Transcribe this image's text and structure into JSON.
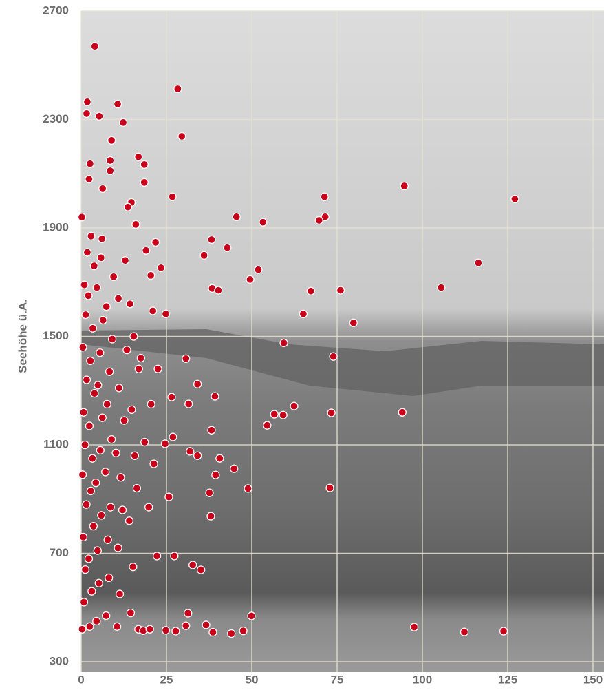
{
  "chart_data": {
    "type": "scatter",
    "ylabel": "Seehöhe ü.A.",
    "xlim": [
      0,
      150
    ],
    "ylim": [
      300,
      2700
    ],
    "xticks": [
      0,
      25,
      50,
      75,
      100,
      125,
      150
    ],
    "yticks": [
      300,
      700,
      1100,
      1500,
      1900,
      2300,
      2700
    ],
    "grid": true,
    "color": "#c8001a",
    "x": [
      4.0,
      28.3,
      29.5,
      1.8,
      10.7,
      5.3,
      1.6,
      12.3,
      8.9,
      16.8,
      18.5,
      8.5,
      2.6,
      8.5,
      18.5,
      6.3,
      26.7,
      94.7,
      71.3,
      127.1,
      14.7,
      13.7,
      45.5,
      71.5,
      69.7,
      53.3,
      16.0,
      38.2,
      42.8,
      21.8,
      19.0,
      36.0,
      116.4,
      23.4,
      51.9,
      20.4,
      49.5,
      38.4,
      40.2,
      67.3,
      76.0,
      105.5,
      21.0,
      24.8,
      65.1,
      79.8,
      59.4,
      73.9,
      30.7,
      34.1,
      39.2,
      26.5,
      31.5,
      62.4,
      56.6,
      59.2,
      73.3,
      94.1,
      54.5,
      38.2,
      26.9,
      24.6,
      31.9,
      34.1,
      40.6,
      44.8,
      39.4,
      37.6,
      48.9,
      72.9,
      25.7,
      38.0,
      32.7,
      35.1,
      31.3,
      49.9,
      36.6,
      97.6,
      112.3,
      123.8,
      44.0,
      47.5,
      38.6,
      27.7,
      30.7,
      24.8,
      22.2,
      27.3,
      0.3,
      0.8,
      1.2,
      0.6,
      1.5,
      0.4,
      1.1,
      0.7,
      1.6,
      0.5,
      1.3,
      0.9,
      0.2,
      1.8,
      2.5,
      3.1,
      2.2,
      3.6,
      2.8,
      3.3,
      2.4,
      3.9,
      2.7,
      3.4,
      2.1,
      3.8,
      2.9,
      2.3,
      4.5,
      5.2,
      4.8,
      5.9,
      4.3,
      5.6,
      6.2,
      4.9,
      5.5,
      6.4,
      4.6,
      5.8,
      6.1,
      7.3,
      8.1,
      7.8,
      8.6,
      7.1,
      8.9,
      7.6,
      8.3,
      9.1,
      7.4,
      9.5,
      10.5,
      11.3,
      10.8,
      12.1,
      11.6,
      10.2,
      12.6,
      11.1,
      13.4,
      10.9,
      12.9,
      14.5,
      15.2,
      14.1,
      16.3,
      15.7,
      14.8,
      16.9,
      15.4,
      14.3,
      17.5,
      18.6,
      19.8,
      20.5,
      21.3,
      16.8,
      18.2,
      20.1,
      22.5
    ],
    "values": [
      2570,
      2413,
      2238,
      2365,
      2357,
      2312,
      2322,
      2289,
      2223,
      2162,
      2134,
      2149,
      2137,
      2111,
      2068,
      2045,
      2015,
      2055,
      2015,
      2007,
      1994,
      1977,
      1941,
      1941,
      1928,
      1921,
      1913,
      1857,
      1827,
      1847,
      1817,
      1799,
      1771,
      1753,
      1746,
      1725,
      1710,
      1677,
      1670,
      1667,
      1670,
      1680,
      1594,
      1583,
      1583,
      1550,
      1476,
      1426,
      1418,
      1324,
      1279,
      1276,
      1251,
      1243,
      1213,
      1210,
      1218,
      1220,
      1172,
      1154,
      1129,
      1104,
      1076,
      1060,
      1050,
      1012,
      989,
      923,
      939,
      941,
      908,
      837,
      657,
      639,
      479,
      469,
      436,
      428,
      410,
      413,
      404,
      414,
      409,
      413,
      433,
      416,
      690,
      690,
      420,
      520,
      640,
      760,
      880,
      990,
      1100,
      1220,
      1340,
      1460,
      1580,
      1690,
      1940,
      1810,
      430,
      560,
      680,
      800,
      930,
      1050,
      1170,
      1290,
      1410,
      1530,
      1650,
      1760,
      1870,
      2080,
      450,
      590,
      710,
      840,
      960,
      1080,
      1200,
      1320,
      1440,
      1560,
      1680,
      1790,
      1860,
      470,
      610,
      750,
      870,
      1000,
      1120,
      1250,
      1370,
      1490,
      1610,
      1720,
      430,
      550,
      720,
      860,
      980,
      1070,
      1190,
      1310,
      1450,
      1640,
      1780,
      480,
      650,
      820,
      940,
      1060,
      1230,
      1380,
      1500,
      1620,
      1420,
      1110,
      870,
      1250,
      1030,
      420,
      415,
      420,
      1380
    ]
  }
}
